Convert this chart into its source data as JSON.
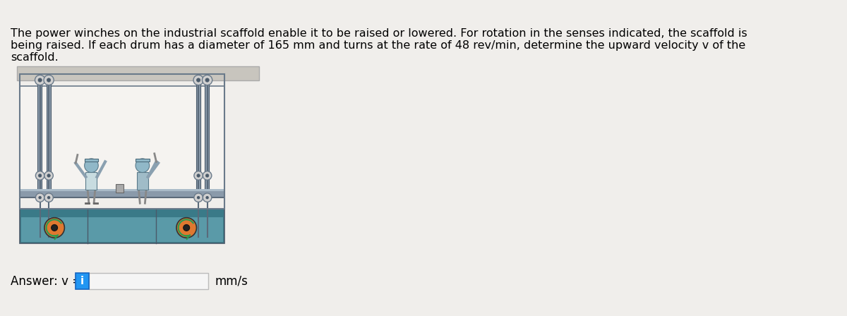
{
  "background_color": "#f0eeeb",
  "text_line1": "The power winches on the industrial scaffold enable it to be raised or lowered. For rotation in the senses indicated, the scaffold is",
  "text_line2": "being raised. If each drum has a diameter of 165 mm and turns at the rate of 48 rev/min, determine the upward velocity v of the",
  "text_line3": "scaffold.",
  "answer_label": "Answer: v = ",
  "answer_unit": "mm/s",
  "info_button_color": "#2196F3",
  "info_button_text": "i",
  "text_fontsize": 11.5,
  "answer_fontsize": 12,
  "fig_width": 12.0,
  "fig_height": 4.48,
  "dpi": 100,
  "scaffold": {
    "bg_outer": "#e8e5e0",
    "bg_inner": "#f5f3f0",
    "top_beam_color": "#c8c5be",
    "frame_color": "#6a7a8a",
    "floor_color": "#5a9aa8",
    "floor_dark": "#3a7a88",
    "pole_color": "#8a9aaa",
    "pole_dark": "#4a5a6a",
    "rope_color": "#5a6a7a",
    "pulley_color": "#d0d0d0",
    "pulley_edge": "#6a7a8a",
    "winch_orange": "#e07830",
    "winch_edge": "#333333",
    "arrow_green": "#2a9a50",
    "person1_body": "#c8dce0",
    "person2_body": "#a0bcc8",
    "person_skin": "#e8c090",
    "person_head": "#90b8c8"
  }
}
